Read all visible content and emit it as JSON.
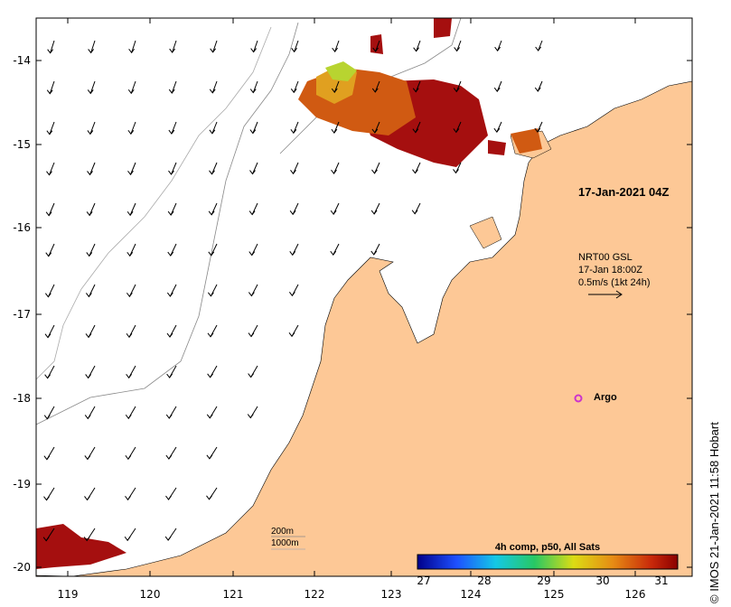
{
  "map": {
    "lon_labels": [
      "119",
      "120",
      "121",
      "122",
      "123",
      "124",
      "125",
      "126"
    ],
    "lat_labels": [
      "-14",
      "-15",
      "-16",
      "-17",
      "-18",
      "-19",
      "-20"
    ],
    "timestamp": "17-Jan-2021 04Z",
    "current_legend": {
      "line1": "NRT00 GSL",
      "line2": "17-Jan 18:00Z",
      "line3": "0.5m/s (1kt 24h)"
    },
    "argo_label": "Argo",
    "credit": "© IMOS 21-Jan-2021 11:58 Hobart",
    "depth_legend": {
      "line1": "200m",
      "line2": "1000m"
    },
    "colorbar": {
      "title": "4h comp, p50, All Sats",
      "ticks": [
        "27",
        "28",
        "29",
        "30",
        "31"
      ]
    },
    "colors": {
      "land": "#fdc896",
      "sst_hot": "#a50f0f",
      "sst_warm": "#d05a12",
      "sst_mid": "#e0a020",
      "sst_cool": "#b8d430",
      "argo": "#cc33cc"
    }
  }
}
